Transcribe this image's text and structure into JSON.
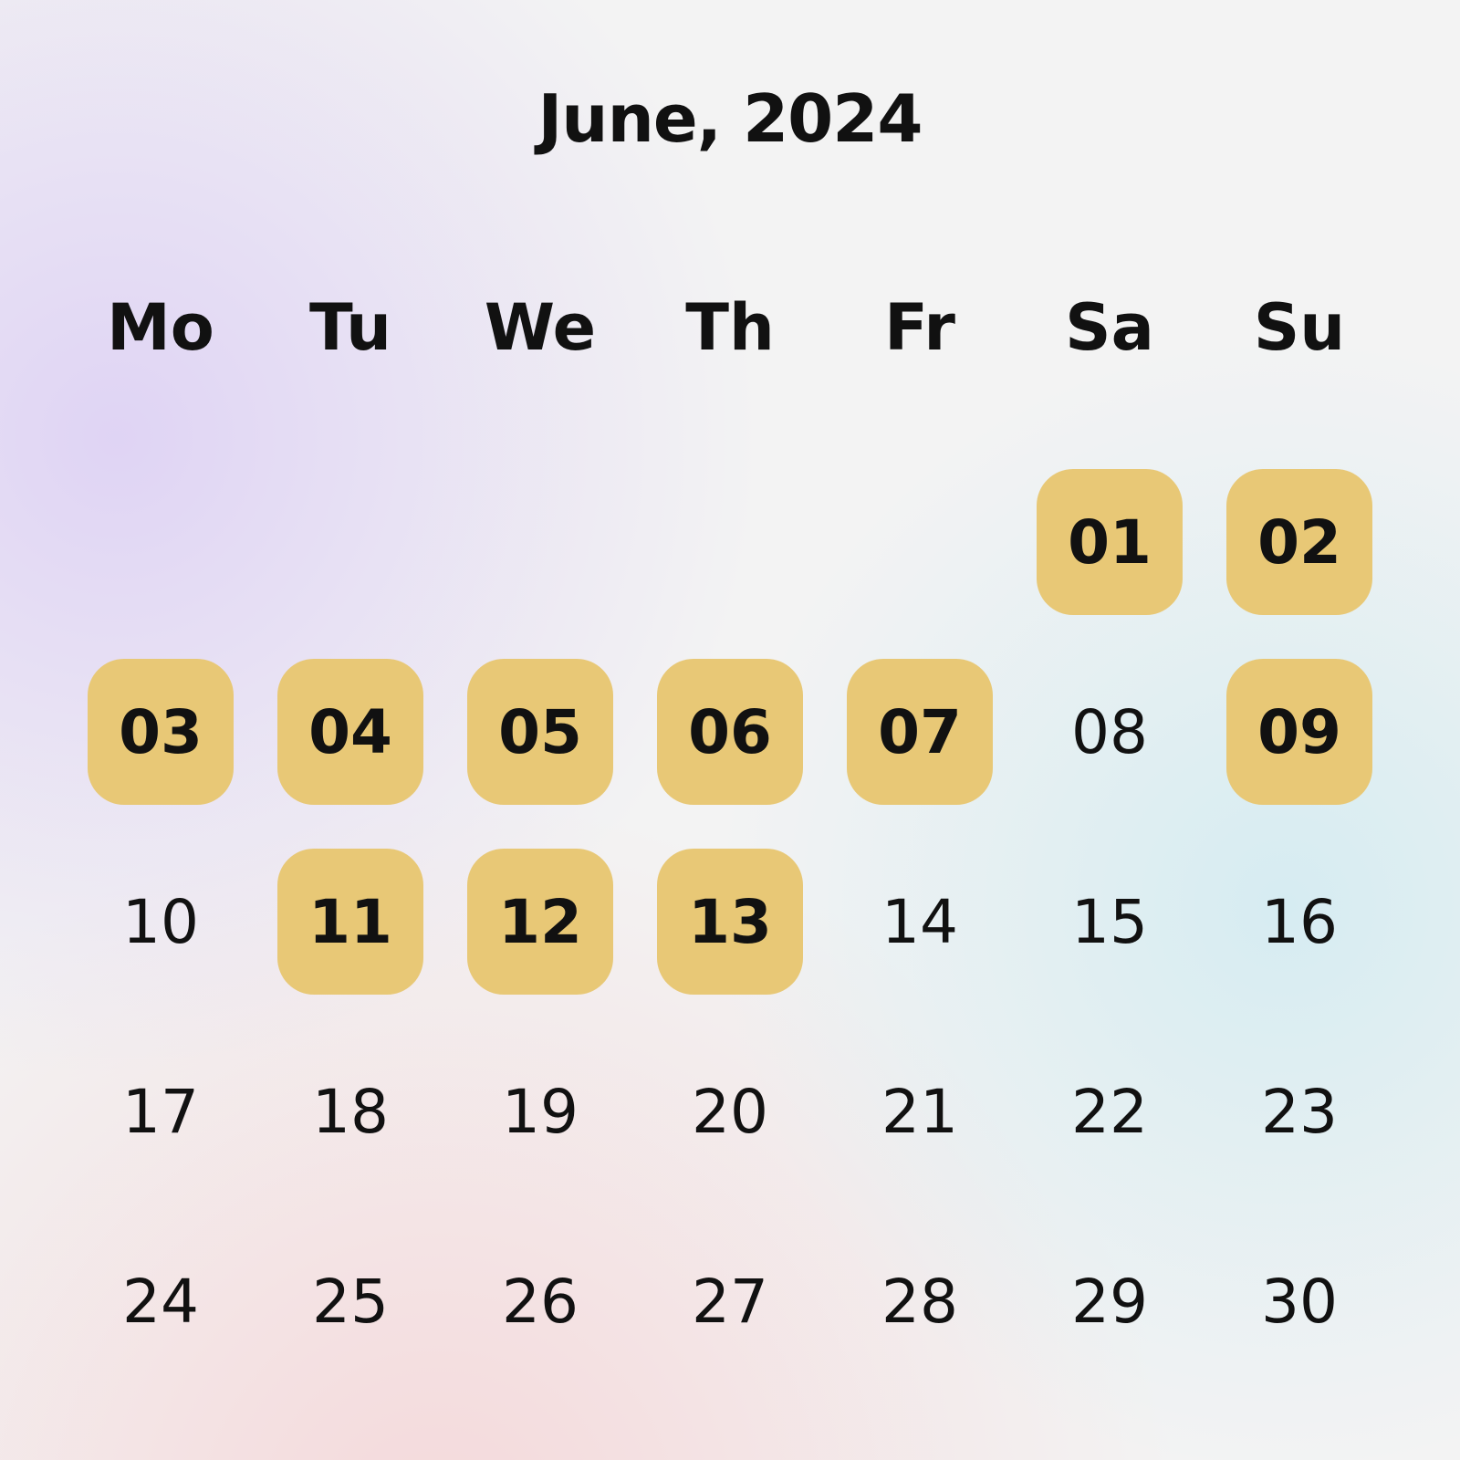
{
  "calendar": {
    "title": "June, 2024",
    "highlight_color": "#E8C876",
    "weekdays": [
      "Mo",
      "Tu",
      "We",
      "Th",
      "Fr",
      "Sa",
      "Su"
    ],
    "leading_blanks": 5,
    "days": [
      {
        "label": "01",
        "highlighted": true
      },
      {
        "label": "02",
        "highlighted": true
      },
      {
        "label": "03",
        "highlighted": true
      },
      {
        "label": "04",
        "highlighted": true
      },
      {
        "label": "05",
        "highlighted": true
      },
      {
        "label": "06",
        "highlighted": true
      },
      {
        "label": "07",
        "highlighted": true
      },
      {
        "label": "08",
        "highlighted": false
      },
      {
        "label": "09",
        "highlighted": true
      },
      {
        "label": "10",
        "highlighted": false
      },
      {
        "label": "11",
        "highlighted": true
      },
      {
        "label": "12",
        "highlighted": true
      },
      {
        "label": "13",
        "highlighted": true
      },
      {
        "label": "14",
        "highlighted": false
      },
      {
        "label": "15",
        "highlighted": false
      },
      {
        "label": "16",
        "highlighted": false
      },
      {
        "label": "17",
        "highlighted": false
      },
      {
        "label": "18",
        "highlighted": false
      },
      {
        "label": "19",
        "highlighted": false
      },
      {
        "label": "20",
        "highlighted": false
      },
      {
        "label": "21",
        "highlighted": false
      },
      {
        "label": "22",
        "highlighted": false
      },
      {
        "label": "23",
        "highlighted": false
      },
      {
        "label": "24",
        "highlighted": false
      },
      {
        "label": "25",
        "highlighted": false
      },
      {
        "label": "26",
        "highlighted": false
      },
      {
        "label": "27",
        "highlighted": false
      },
      {
        "label": "28",
        "highlighted": false
      },
      {
        "label": "29",
        "highlighted": false
      },
      {
        "label": "30",
        "highlighted": false
      }
    ]
  }
}
